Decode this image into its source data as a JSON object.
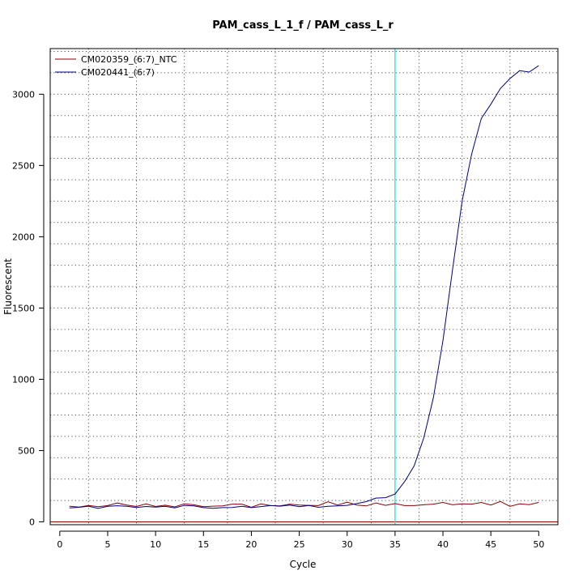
{
  "chart_data": {
    "type": "line",
    "title": "PAM_cass_L_1_f / PAM_cass_L_r",
    "xlabel": "Cycle",
    "ylabel": "Fluorescent",
    "xlim": [
      -1,
      52
    ],
    "ylim": [
      -20,
      3320
    ],
    "xticks": [
      0,
      5,
      10,
      15,
      20,
      25,
      30,
      35,
      40,
      45,
      50
    ],
    "yticks": [
      0,
      500,
      1000,
      1500,
      2000,
      2500,
      3000
    ],
    "x_gridlines": [
      3,
      8,
      13,
      17.5,
      22.5,
      27.5,
      32.5,
      37.5,
      42,
      47
    ],
    "y_gridlines": [
      0,
      150,
      300,
      450,
      600,
      750,
      900,
      1050,
      1200,
      1350,
      1500,
      1650,
      1800,
      1950,
      2100,
      2250,
      2400,
      2550,
      2700,
      2850,
      3000,
      3150,
      3300
    ],
    "grid": true,
    "baseline": {
      "y": 0,
      "color": "#8b0000"
    },
    "threshold": {
      "x": 35,
      "color": "#00e5ee"
    },
    "legend_position": "top-left",
    "series": [
      {
        "name": "CM020359_(6:7)_NTC",
        "color": "#8b0000",
        "x": [
          1,
          2,
          3,
          4,
          5,
          6,
          7,
          8,
          9,
          10,
          11,
          12,
          13,
          14,
          15,
          16,
          17,
          18,
          19,
          20,
          21,
          22,
          23,
          24,
          25,
          26,
          27,
          28,
          29,
          30,
          31,
          32,
          33,
          34,
          35,
          36,
          37,
          38,
          39,
          40,
          41,
          42,
          43,
          44,
          45,
          46,
          47,
          48,
          49,
          50
        ],
        "values": [
          110,
          104,
          115,
          106,
          114,
          132,
          118,
          108,
          126,
          108,
          117,
          105,
          126,
          120,
          106,
          110,
          112,
          124,
          124,
          102,
          126,
          114,
          112,
          124,
          118,
          116,
          114,
          141,
          118,
          138,
          118,
          112,
          132,
          116,
          128,
          114,
          114,
          120,
          124,
          136,
          120,
          126,
          124,
          136,
          118,
          143,
          109,
          126,
          121,
          136
        ]
      },
      {
        "name": "CM020441_(6:7)",
        "color": "#000080",
        "x": [
          1,
          2,
          3,
          4,
          5,
          6,
          7,
          8,
          9,
          10,
          11,
          12,
          13,
          14,
          15,
          16,
          17,
          18,
          19,
          20,
          21,
          22,
          23,
          24,
          25,
          26,
          27,
          28,
          29,
          30,
          31,
          32,
          33,
          34,
          35,
          36,
          37,
          38,
          39,
          40,
          41,
          42,
          43,
          44,
          45,
          46,
          47,
          48,
          49,
          50
        ],
        "values": [
          98,
          102,
          110,
          94,
          109,
          113,
          109,
          101,
          108,
          104,
          109,
          98,
          115,
          112,
          100,
          95,
          100,
          101,
          109,
          100,
          107,
          114,
          110,
          118,
          106,
          115,
          102,
          109,
          112,
          116,
          128,
          142,
          167,
          170,
          195,
          282,
          393,
          590,
          870,
          1270,
          1770,
          2250,
          2580,
          2830,
          2930,
          3040,
          3110,
          3165,
          3155,
          3200
        ]
      }
    ]
  }
}
